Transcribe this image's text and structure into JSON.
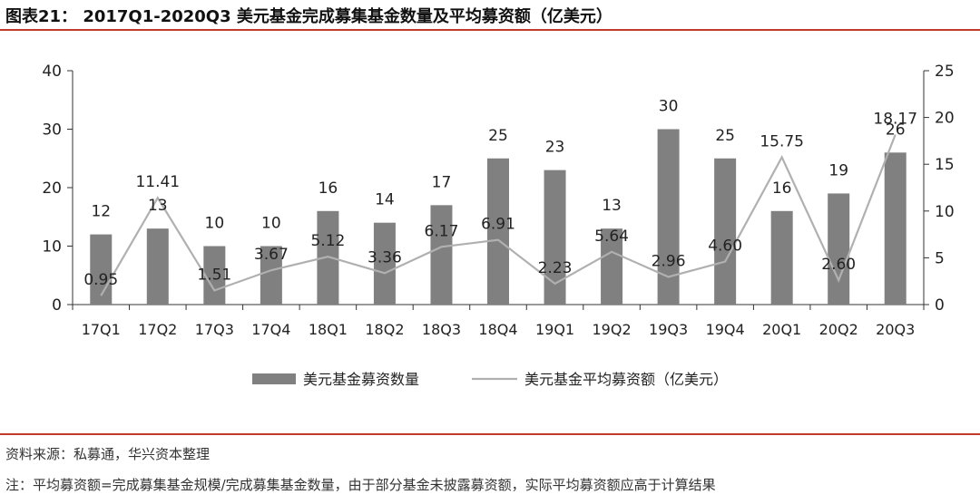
{
  "header": {
    "title": "图表21： 2017Q1-2020Q3 美元基金完成募集基金数量及平均募资额（亿美元）"
  },
  "footer": {
    "source": "资料来源：私募通，华兴资本整理",
    "note": "注：平均募资额=完成募集基金规模/完成募集基金数量，由于部分基金未披露募资额，实际平均募资额应高于计算结果"
  },
  "colors": {
    "bar": "#808080",
    "line": "#b0b0b0",
    "axis": "#333333",
    "accent": "#c0392b"
  },
  "chart_data": {
    "type": "bar+line",
    "categories": [
      "17Q1",
      "17Q2",
      "17Q3",
      "17Q4",
      "18Q1",
      "18Q2",
      "18Q3",
      "18Q4",
      "19Q1",
      "19Q2",
      "19Q3",
      "19Q4",
      "20Q1",
      "20Q2",
      "20Q3"
    ],
    "series": [
      {
        "name": "美元基金募资数量",
        "type": "bar",
        "axis": "left",
        "values": [
          12,
          13,
          10,
          10,
          16,
          14,
          17,
          25,
          23,
          13,
          30,
          25,
          16,
          19,
          26
        ],
        "labels": [
          "12",
          "13",
          "10",
          "10",
          "16",
          "14",
          "17",
          "25",
          "23",
          "13",
          "30",
          "25",
          "16",
          "19",
          "26"
        ]
      },
      {
        "name": "美元基金平均募资额（亿美元）",
        "type": "line",
        "axis": "right",
        "values": [
          0.95,
          11.41,
          1.51,
          3.67,
          5.12,
          3.36,
          6.17,
          6.91,
          2.23,
          5.64,
          2.96,
          4.6,
          15.75,
          2.6,
          18.17
        ],
        "labels": [
          "0.95",
          "11.41",
          "1.51",
          "3.67",
          "5.12",
          "3.36",
          "6.17",
          "6.91",
          "2.23",
          "5.64",
          "2.96",
          "4.60",
          "15.75",
          "2.60",
          "18.17"
        ]
      }
    ],
    "left_axis": {
      "min": 0,
      "max": 40,
      "ticks": [
        "0",
        "10",
        "20",
        "30",
        "40"
      ]
    },
    "right_axis": {
      "min": 0,
      "max": 25,
      "ticks": [
        "0",
        "5",
        "10",
        "15",
        "20",
        "25"
      ]
    },
    "grid": false,
    "legend_position": "bottom"
  }
}
